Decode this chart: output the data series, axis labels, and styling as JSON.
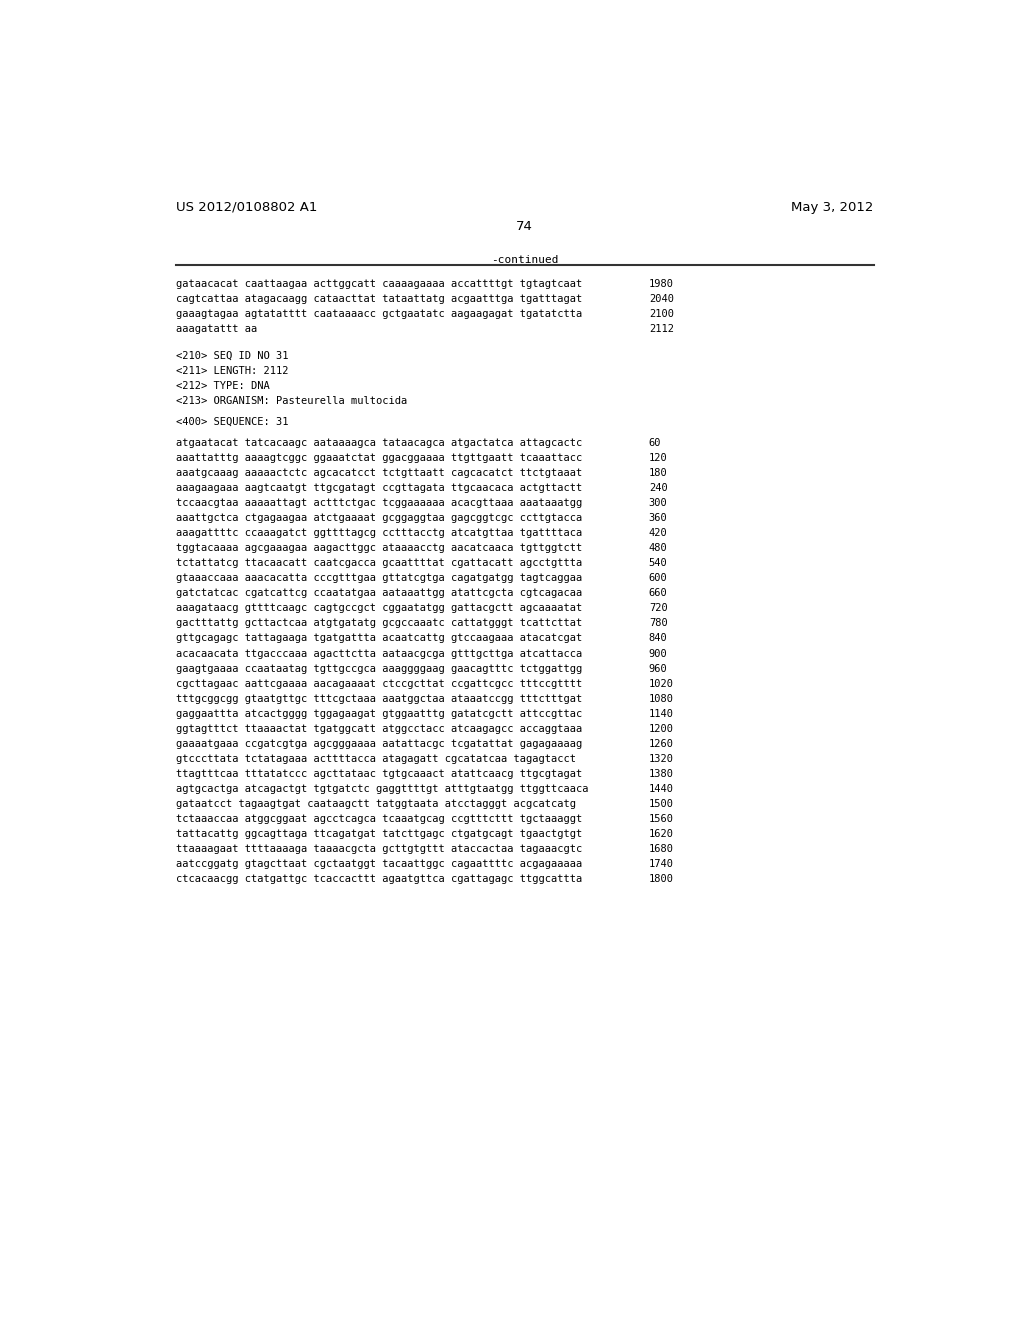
{
  "header_left": "US 2012/0108802 A1",
  "header_right": "May 3, 2012",
  "page_number": "74",
  "continued_label": "-continued",
  "background_color": "#ffffff",
  "text_color": "#000000",
  "font_size_header": 9.5,
  "font_size_body": 8.0,
  "font_size_seq": 7.5,
  "lines": [
    {
      "text": "gataacacat caattaagaa acttggcatt caaaagaaaa accattttgt tgtagtcaat",
      "num": "1980"
    },
    {
      "text": "cagtcattaa atagacaagg cataacttat tataattatg acgaatttga tgatttagat",
      "num": "2040"
    },
    {
      "text": "gaaagtagaa agtatatttt caataaaacc gctgaatatc aagaagagat tgatatctta",
      "num": "2100"
    },
    {
      "text": "aaagatattt aa",
      "num": "2112"
    },
    {
      "text": "",
      "num": ""
    },
    {
      "text": "",
      "num": ""
    },
    {
      "text": "<210> SEQ ID NO 31",
      "num": ""
    },
    {
      "text": "<211> LENGTH: 2112",
      "num": ""
    },
    {
      "text": "<212> TYPE: DNA",
      "num": ""
    },
    {
      "text": "<213> ORGANISM: Pasteurella multocida",
      "num": ""
    },
    {
      "text": "",
      "num": ""
    },
    {
      "text": "<400> SEQUENCE: 31",
      "num": ""
    },
    {
      "text": "",
      "num": ""
    },
    {
      "text": "atgaatacat tatcacaagc aataaaagca tataacagca atgactatca attagcactc",
      "num": "60"
    },
    {
      "text": "aaattatttg aaaagtcggc ggaaatctat ggacggaaaa ttgttgaatt tcaaattacc",
      "num": "120"
    },
    {
      "text": "aaatgcaaag aaaaactctc agcacatcct tctgttaatt cagcacatct ttctgtaaat",
      "num": "180"
    },
    {
      "text": "aaagaagaaa aagtcaatgt ttgcgatagt ccgttagata ttgcaacaca actgttactt",
      "num": "240"
    },
    {
      "text": "tccaacgtaa aaaaattagt actttctgac tcggaaaaaa acacgttaaa aaataaatgg",
      "num": "300"
    },
    {
      "text": "aaattgctca ctgagaagaa atctgaaaat gcggaggtaa gagcggtcgc ccttgtacca",
      "num": "360"
    },
    {
      "text": "aaagattttc ccaaagatct ggttttagcg cctttacctg atcatgttaa tgattttaca",
      "num": "420"
    },
    {
      "text": "tggtacaaaa agcgaaagaa aagacttggc ataaaacctg aacatcaaca tgttggtctt",
      "num": "480"
    },
    {
      "text": "tctattatcg ttacaacatt caatcgacca gcaattttat cgattacatt agcctgttta",
      "num": "540"
    },
    {
      "text": "gtaaaccaaa aaacacatta cccgtttgaa gttatcgtga cagatgatgg tagtcaggaa",
      "num": "600"
    },
    {
      "text": "gatctatcac cgatcattcg ccaatatgaa aataaattgg atattcgcta cgtcagacaa",
      "num": "660"
    },
    {
      "text": "aaagataacg gttttcaagc cagtgccgct cggaatatgg gattacgctt agcaaaatat",
      "num": "720"
    },
    {
      "text": "gactttattg gcttactcaa atgtgatatg gcgccaaatc cattatgggt tcattcttat",
      "num": "780"
    },
    {
      "text": "gttgcagagc tattagaaga tgatgattta acaatcattg gtccaagaaa atacatcgat",
      "num": "840"
    },
    {
      "text": "acacaacata ttgacccaaa agacttctta aataacgcga gtttgcttga atcattacca",
      "num": "900"
    },
    {
      "text": "gaagtgaaaa ccaataatag tgttgccgca aaaggggaag gaacagtttc tctggattgg",
      "num": "960"
    },
    {
      "text": "cgcttagaac aattcgaaaa aacagaaaat ctccgcttat ccgattcgcc tttccgtttt",
      "num": "1020"
    },
    {
      "text": "tttgcggcgg gtaatgttgc tttcgctaaa aaatggctaa ataaatccgg tttctttgat",
      "num": "1080"
    },
    {
      "text": "gaggaattta atcactgggg tggagaagat gtggaatttg gatatcgctt attccgttac",
      "num": "1140"
    },
    {
      "text": "ggtagtttct ttaaaactat tgatggcatt atggcctacc atcaagagcc accaggtaaa",
      "num": "1200"
    },
    {
      "text": "gaaaatgaaa ccgatcgtga agcgggaaaa aatattacgc tcgatattat gagagaaaag",
      "num": "1260"
    },
    {
      "text": "gtcccttata tctatagaaa acttttacca atagagatt cgcatatcaa tagagtacct",
      "num": "1320"
    },
    {
      "text": "ttagtttcaa tttatatccc agcttataac tgtgcaaact atattcaacg ttgcgtagat",
      "num": "1380"
    },
    {
      "text": "agtgcactga atcagactgt tgtgatctc gaggttttgt atttgtaatgg ttggttcaaca",
      "num": "1440"
    },
    {
      "text": "gataatcct tagaagtgat caataagctt tatggtaata atcctagggt acgcatcatg",
      "num": "1500"
    },
    {
      "text": "tctaaaccaa atggcggaat agcctcagca tcaaatgcag ccgtttcttt tgctaaaggt",
      "num": "1560"
    },
    {
      "text": "tattacattg ggcagttaga ttcagatgat tatcttgagc ctgatgcagt tgaactgtgt",
      "num": "1620"
    },
    {
      "text": "ttaaaagaat ttttaaaaga taaaacgcta gcttgtgttt ataccactaa tagaaacgtc",
      "num": "1680"
    },
    {
      "text": "aatccggatg gtagcttaat cgctaatggt tacaattggc cagaattttc acgagaaaaa",
      "num": "1740"
    },
    {
      "text": "ctcacaacgg ctatgattgc tcaccacttt agaatgttca cgattagagc ttggcattta",
      "num": "1800"
    }
  ]
}
